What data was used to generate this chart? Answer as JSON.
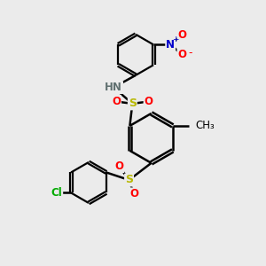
{
  "bg_color": "#ebebeb",
  "bond_color": "#000000",
  "bond_width": 1.8,
  "atom_colors": {
    "S": "#b8b800",
    "O": "#ff0000",
    "N": "#0000cc",
    "H": "#607070",
    "Cl": "#00aa00",
    "C": "#000000"
  },
  "font_size": 8.5,
  "figsize": [
    3.0,
    3.0
  ],
  "dpi": 100
}
